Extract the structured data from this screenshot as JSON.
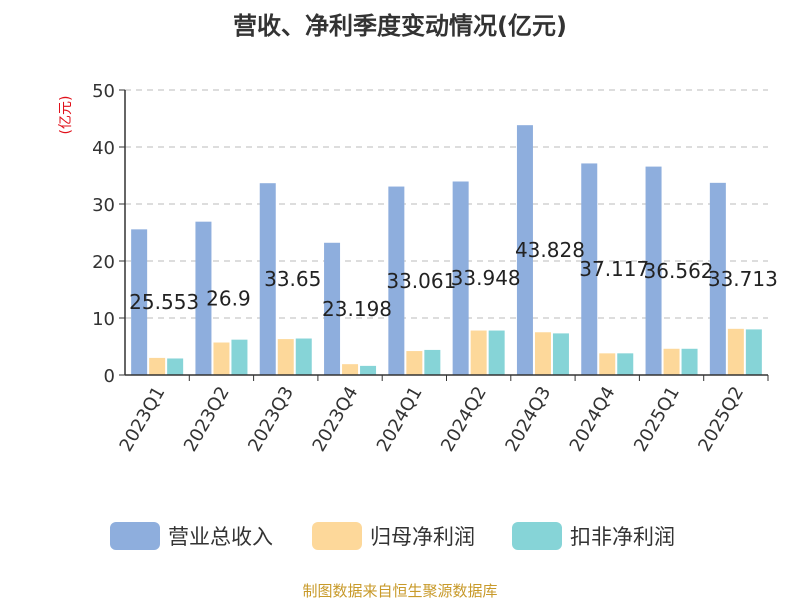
{
  "chart_data": {
    "type": "bar",
    "title": "营收、净利季度变动情况(亿元)",
    "ylabel": "(亿元)",
    "xlabel": "",
    "ylim": [
      0,
      50
    ],
    "yticks": [
      0,
      10,
      20,
      30,
      40,
      50
    ],
    "grid": true,
    "legend_position": "bottom",
    "categories": [
      "2023Q1",
      "2023Q2",
      "2023Q3",
      "2023Q4",
      "2024Q1",
      "2024Q2",
      "2024Q3",
      "2024Q4",
      "2025Q1",
      "2025Q2"
    ],
    "series": [
      {
        "name": "营业总收入",
        "color": "#8eaedd",
        "values": [
          25.553,
          26.9,
          33.65,
          23.198,
          33.061,
          33.948,
          43.828,
          37.117,
          36.562,
          33.713
        ],
        "labels": [
          "25.553",
          "26.9",
          "33.65",
          "23.198",
          "33.061",
          "33.948",
          "43.828",
          "37.117",
          "36.562",
          "33.713"
        ]
      },
      {
        "name": "归母净利润",
        "color": "#fdd89a",
        "values": [
          3.0,
          5.7,
          6.3,
          1.9,
          4.2,
          7.8,
          7.5,
          3.8,
          4.6,
          8.1
        ]
      },
      {
        "name": "扣非净利润",
        "color": "#86d4d7",
        "values": [
          2.9,
          6.2,
          6.4,
          1.6,
          4.4,
          7.8,
          7.3,
          3.8,
          4.6,
          8.0
        ]
      }
    ],
    "source": "制图数据来自恒生聚源数据库",
    "colors": {
      "ylabel": "#e0101a",
      "source": "#c89a2a",
      "grid": "#bbbbbb",
      "axis": "#333333"
    }
  }
}
